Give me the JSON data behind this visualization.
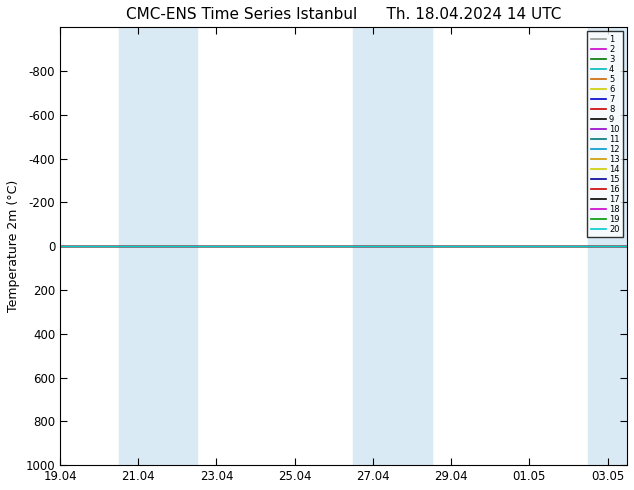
{
  "title_left": "CMC-ENS Time Series Istanbul",
  "title_right": "Th. 18.04.2024 14 UTC",
  "ylabel": "Temperature 2m (°C)",
  "ylim_bottom": 1000,
  "ylim_top": -1000,
  "yticks": [
    -800,
    -600,
    -400,
    -200,
    0,
    200,
    400,
    600,
    800,
    1000
  ],
  "xtick_labels": [
    "19.04",
    "21.04",
    "23.04",
    "25.04",
    "27.04",
    "29.04",
    "01.05",
    "03.05"
  ],
  "xtick_positions": [
    0,
    2,
    4,
    6,
    8,
    10,
    12,
    14
  ],
  "x_start": 0,
  "x_end": 14.5,
  "shaded_bands": [
    {
      "xmin": 1.5,
      "xmax": 3.5
    },
    {
      "xmin": 7.5,
      "xmax": 9.5
    },
    {
      "xmin": 13.5,
      "xmax": 14.5
    }
  ],
  "shade_color": "#daeaf5",
  "member_colors": [
    "#999999",
    "#cc00cc",
    "#007700",
    "#00bbbb",
    "#cc6600",
    "#cccc00",
    "#0000cc",
    "#cc0000",
    "#000000",
    "#9900cc",
    "#007777",
    "#0099cc",
    "#cc9900",
    "#cccc00",
    "#000099",
    "#cc0000",
    "#000000",
    "#cc00cc",
    "#009900",
    "#00cccc"
  ],
  "line_y": 0.0,
  "background_color": "#ffffff",
  "spine_color": "#000000"
}
